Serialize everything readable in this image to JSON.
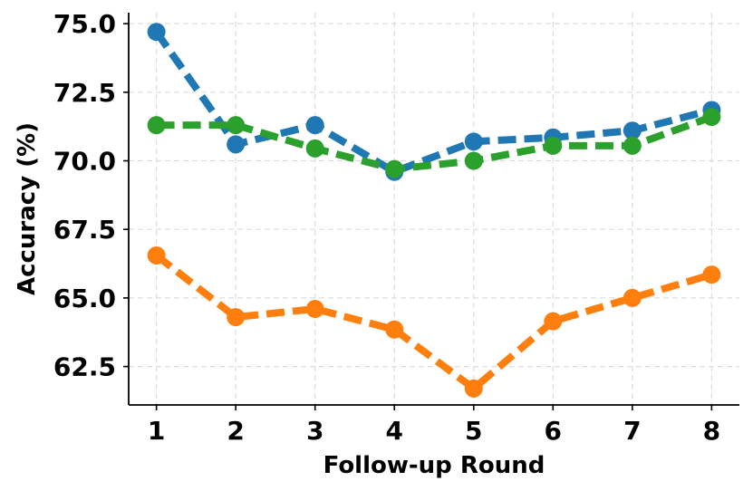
{
  "chart_data": {
    "type": "line",
    "title": "",
    "xlabel": "Follow-up Round",
    "ylabel": "Accuracy (%)",
    "x": [
      1,
      2,
      3,
      4,
      5,
      6,
      7,
      8
    ],
    "xticks": [
      "1",
      "2",
      "3",
      "4",
      "5",
      "6",
      "7",
      "8"
    ],
    "yticks": [
      "62.5",
      "65.0",
      "67.5",
      "70.0",
      "72.5",
      "75.0"
    ],
    "ytick_values": [
      62.5,
      65.0,
      67.5,
      70.0,
      72.5,
      75.0
    ],
    "xlim": [
      0.65,
      8.35
    ],
    "ylim": [
      61.1,
      75.4
    ],
    "grid": true,
    "legend": "none",
    "series": [
      {
        "color": "#1f77b4",
        "values": [
          74.7,
          70.6,
          71.3,
          69.6,
          70.7,
          70.85,
          71.1,
          71.85
        ]
      },
      {
        "color": "#2ca02c",
        "values": [
          71.3,
          71.3,
          70.45,
          69.7,
          70.0,
          70.55,
          70.55,
          71.6
        ]
      },
      {
        "color": "#ff7f0e",
        "values": [
          66.55,
          64.3,
          64.6,
          63.85,
          61.7,
          64.15,
          65.0,
          65.85
        ]
      }
    ]
  }
}
